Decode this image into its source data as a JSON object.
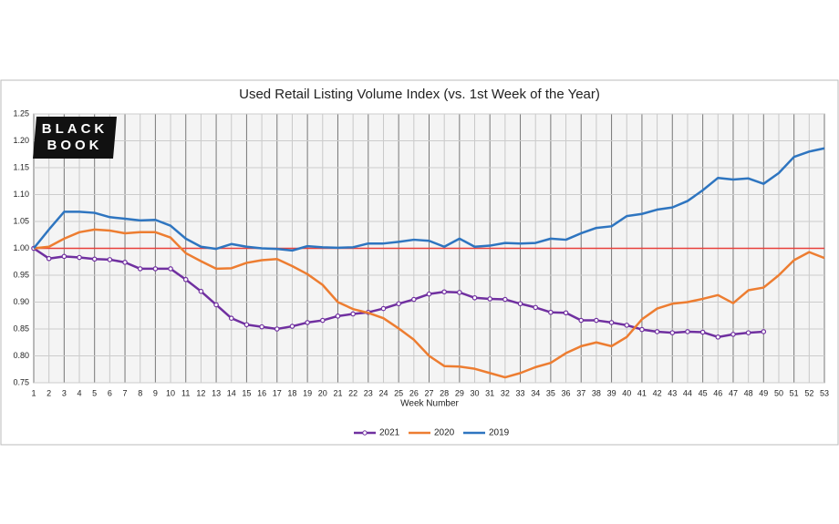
{
  "chart_data": {
    "type": "line",
    "title": "Used Retail Listing Volume Index (vs. 1st Week of the Year)",
    "x_label": "Week Number",
    "logo": [
      "BLACK",
      "BOOK"
    ],
    "x": [
      1,
      2,
      3,
      4,
      5,
      6,
      7,
      8,
      9,
      10,
      11,
      12,
      13,
      14,
      15,
      16,
      17,
      18,
      19,
      20,
      21,
      22,
      23,
      24,
      25,
      26,
      27,
      28,
      29,
      30,
      31,
      32,
      33,
      34,
      35,
      36,
      37,
      38,
      39,
      40,
      41,
      42,
      43,
      44,
      45,
      46,
      47,
      48,
      49,
      50,
      51,
      52,
      53
    ],
    "xlim": [
      1,
      53
    ],
    "xticks": [
      1,
      2,
      3,
      4,
      5,
      6,
      7,
      8,
      9,
      10,
      11,
      12,
      13,
      14,
      15,
      16,
      17,
      18,
      19,
      20,
      21,
      22,
      23,
      24,
      25,
      26,
      27,
      28,
      29,
      30,
      31,
      32,
      33,
      34,
      35,
      36,
      37,
      38,
      39,
      40,
      41,
      42,
      43,
      44,
      45,
      46,
      47,
      48,
      49,
      50,
      51,
      52,
      53
    ],
    "ylim": [
      0.75,
      1.25
    ],
    "yticks": [
      0.75,
      {
        "value": 0.8,
        "label": "0.80"
      },
      0.85,
      {
        "value": 0.9,
        "label": "0.90"
      },
      0.95,
      {
        "value": 1,
        "label": "1.00"
      },
      1.05,
      {
        "value": 1.1,
        "label": "1.10"
      },
      1.15,
      {
        "value": 1.2,
        "label": "1.20"
      },
      1.25
    ],
    "grid": true,
    "hline": {
      "value": 1,
      "color": "#e8403a"
    },
    "legend": "bottom",
    "series": [
      {
        "name": "2021",
        "color": "#7030a0",
        "marker": true,
        "values": [
          1.0,
          0.981,
          0.985,
          0.983,
          0.98,
          0.979,
          0.974,
          0.962,
          0.962,
          0.962,
          0.942,
          0.92,
          0.895,
          0.87,
          0.858,
          0.854,
          0.85,
          0.855,
          0.862,
          0.866,
          0.874,
          0.878,
          0.881,
          0.888,
          0.897,
          0.905,
          0.915,
          0.919,
          0.918,
          0.908,
          0.906,
          0.905,
          0.897,
          0.89,
          0.881,
          0.88,
          0.866,
          0.866,
          0.862,
          0.857,
          0.849,
          0.845,
          0.843,
          0.845,
          0.844,
          0.835,
          0.84,
          0.843,
          0.845,
          null,
          null,
          null,
          null
        ]
      },
      {
        "name": "2020",
        "color": "#ed7d31",
        "marker": false,
        "values": [
          1.0,
          1.003,
          1.018,
          1.03,
          1.035,
          1.033,
          1.028,
          1.03,
          1.03,
          1.02,
          0.991,
          0.976,
          0.962,
          0.963,
          0.973,
          0.978,
          0.98,
          0.967,
          0.952,
          0.932,
          0.9,
          0.887,
          0.88,
          0.87,
          0.851,
          0.83,
          0.8,
          0.781,
          0.78,
          0.776,
          0.768,
          0.76,
          0.768,
          0.779,
          0.787,
          0.805,
          0.818,
          0.825,
          0.818,
          0.835,
          0.868,
          0.888,
          0.897,
          0.9,
          0.906,
          0.913,
          0.898,
          0.922,
          0.927,
          0.95,
          0.978,
          0.993,
          0.982
        ]
      },
      {
        "name": "2019",
        "color": "#2e75c0",
        "marker": false,
        "values": [
          1.0,
          1.035,
          1.068,
          1.068,
          1.066,
          1.058,
          1.055,
          1.052,
          1.053,
          1.042,
          1.018,
          1.003,
          0.999,
          1.008,
          1.003,
          1.0,
          0.999,
          0.996,
          1.004,
          1.002,
          1.001,
          1.002,
          1.009,
          1.009,
          1.012,
          1.016,
          1.014,
          1.003,
          1.018,
          1.003,
          1.005,
          1.01,
          1.009,
          1.01,
          1.018,
          1.016,
          1.028,
          1.038,
          1.041,
          1.06,
          1.064,
          1.072,
          1.076,
          1.088,
          1.108,
          1.131,
          1.128,
          1.13,
          1.12,
          1.14,
          1.17,
          1.18,
          1.186
        ]
      }
    ]
  }
}
